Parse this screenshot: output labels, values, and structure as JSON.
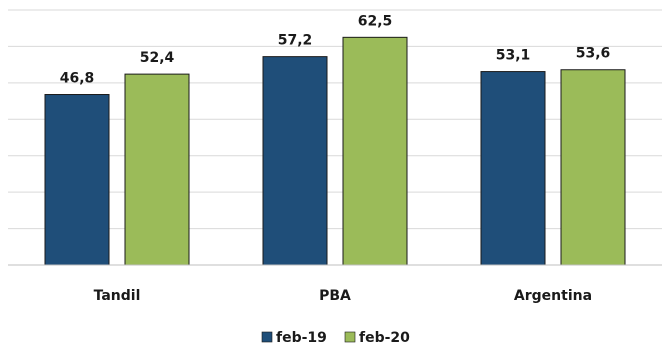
{
  "chart_data": {
    "type": "bar",
    "categories": [
      "Tandil",
      "PBA",
      "Argentina"
    ],
    "series": [
      {
        "name": "feb-19",
        "values": [
          46.8,
          57.2,
          53.1
        ],
        "labels": [
          "46,8",
          "57,2",
          "53,1"
        ],
        "color": "#1f4e79"
      },
      {
        "name": "feb-20",
        "values": [
          52.4,
          62.5,
          53.6
        ],
        "labels": [
          "52,4",
          "62,5",
          "53,6"
        ],
        "color": "#9bbb59"
      }
    ],
    "ylim": [
      0,
      70
    ],
    "grid": true,
    "legend": "bottom",
    "title": "",
    "xlabel": "",
    "ylabel": ""
  }
}
